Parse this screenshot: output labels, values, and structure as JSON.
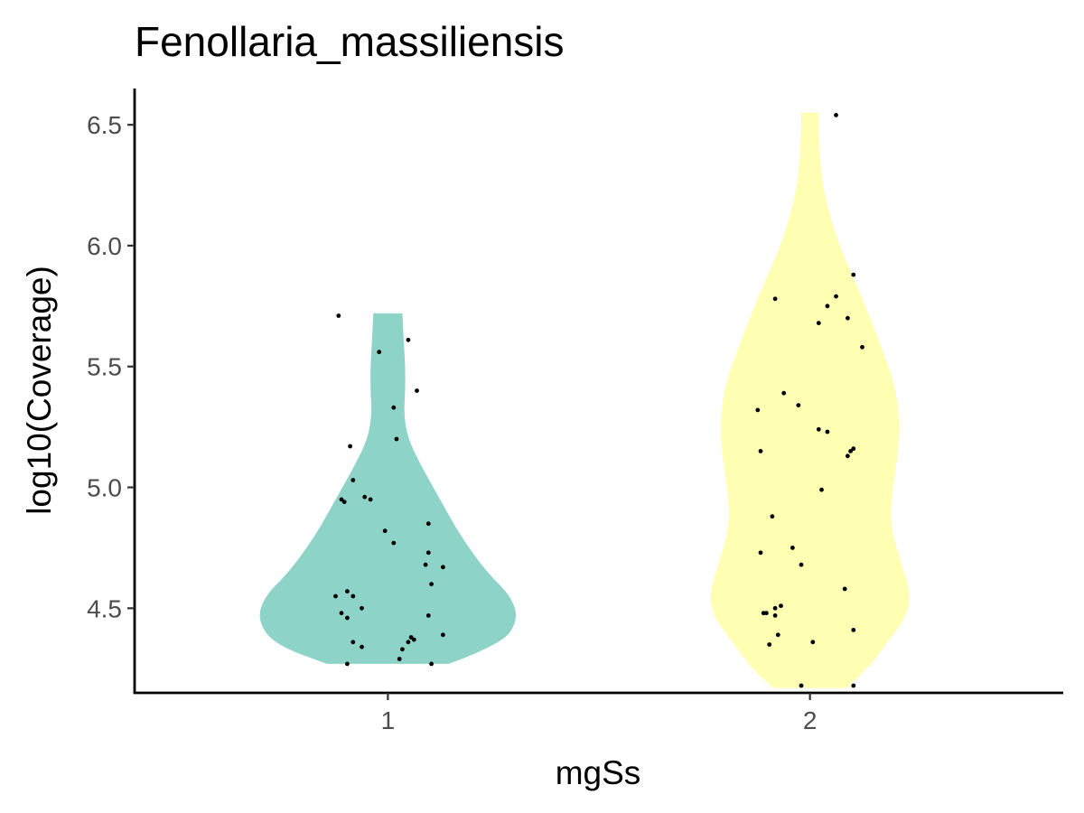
{
  "chart_data": {
    "type": "violin",
    "title": "Fenollaria_massiliensis",
    "xlabel": "mgSs",
    "ylabel": "log10(Coverage)",
    "categories": [
      "1",
      "2"
    ],
    "ylim": [
      4.15,
      6.65
    ],
    "yticks": [
      4.5,
      5.0,
      5.5,
      6.0,
      6.5
    ],
    "ytick_labels": [
      "4.5",
      "5.0",
      "5.5",
      "6.0",
      "6.5"
    ],
    "grid": false,
    "legend": "none",
    "series": [
      {
        "category": "1",
        "color": "#8dd3c7",
        "range": [
          4.27,
          5.72
        ],
        "density_profile": [
          [
            4.27,
            0.42
          ],
          [
            4.35,
            0.78
          ],
          [
            4.45,
            0.9
          ],
          [
            4.55,
            0.85
          ],
          [
            4.65,
            0.68
          ],
          [
            4.8,
            0.5
          ],
          [
            4.95,
            0.36
          ],
          [
            5.1,
            0.22
          ],
          [
            5.2,
            0.14
          ],
          [
            5.3,
            0.11
          ],
          [
            5.4,
            0.12
          ],
          [
            5.5,
            0.12
          ],
          [
            5.6,
            0.11
          ],
          [
            5.72,
            0.1
          ]
        ],
        "points": [
          [
            -0.17,
            5.71
          ],
          [
            -0.03,
            5.56
          ],
          [
            0.02,
            5.33
          ],
          [
            0.03,
            5.2
          ],
          [
            0.07,
            5.61
          ],
          [
            0.1,
            5.4
          ],
          [
            -0.13,
            5.17
          ],
          [
            -0.12,
            5.03
          ],
          [
            -0.16,
            4.95
          ],
          [
            -0.15,
            4.94
          ],
          [
            -0.08,
            4.96
          ],
          [
            -0.06,
            4.95
          ],
          [
            -0.01,
            4.82
          ],
          [
            0.02,
            4.77
          ],
          [
            0.14,
            4.85
          ],
          [
            0.14,
            4.73
          ],
          [
            0.13,
            4.68
          ],
          [
            0.19,
            4.67
          ],
          [
            0.15,
            4.6
          ],
          [
            -0.18,
            4.55
          ],
          [
            -0.14,
            4.57
          ],
          [
            -0.12,
            4.55
          ],
          [
            -0.09,
            4.5
          ],
          [
            -0.16,
            4.48
          ],
          [
            -0.14,
            4.46
          ],
          [
            0.14,
            4.47
          ],
          [
            -0.12,
            4.36
          ],
          [
            -0.09,
            4.34
          ],
          [
            0.08,
            4.38
          ],
          [
            0.09,
            4.37
          ],
          [
            0.07,
            4.36
          ],
          [
            0.05,
            4.33
          ],
          [
            0.04,
            4.29
          ],
          [
            0.19,
            4.39
          ],
          [
            -0.14,
            4.27
          ],
          [
            0.15,
            4.27
          ]
        ]
      },
      {
        "category": "2",
        "color": "#ffffb3",
        "range": [
          4.17,
          6.55
        ],
        "density_profile": [
          [
            4.17,
            0.25
          ],
          [
            4.25,
            0.4
          ],
          [
            4.35,
            0.52
          ],
          [
            4.45,
            0.65
          ],
          [
            4.55,
            0.7
          ],
          [
            4.7,
            0.62
          ],
          [
            4.85,
            0.55
          ],
          [
            5.0,
            0.57
          ],
          [
            5.2,
            0.62
          ],
          [
            5.4,
            0.6
          ],
          [
            5.6,
            0.48
          ],
          [
            5.8,
            0.35
          ],
          [
            6.0,
            0.2
          ],
          [
            6.2,
            0.1
          ],
          [
            6.4,
            0.06
          ],
          [
            6.55,
            0.06
          ]
        ],
        "points": [
          [
            0.09,
            6.54
          ],
          [
            0.15,
            5.88
          ],
          [
            -0.12,
            5.78
          ],
          [
            0.09,
            5.79
          ],
          [
            0.06,
            5.75
          ],
          [
            0.13,
            5.7
          ],
          [
            0.03,
            5.68
          ],
          [
            0.18,
            5.58
          ],
          [
            -0.09,
            5.39
          ],
          [
            -0.04,
            5.34
          ],
          [
            -0.18,
            5.32
          ],
          [
            0.03,
            5.24
          ],
          [
            0.06,
            5.23
          ],
          [
            0.15,
            5.16
          ],
          [
            0.14,
            5.15
          ],
          [
            0.13,
            5.13
          ],
          [
            -0.17,
            5.15
          ],
          [
            0.04,
            4.99
          ],
          [
            -0.13,
            4.88
          ],
          [
            -0.06,
            4.75
          ],
          [
            -0.03,
            4.68
          ],
          [
            -0.17,
            4.73
          ],
          [
            0.12,
            4.58
          ],
          [
            -0.15,
            4.48
          ],
          [
            -0.16,
            4.48
          ],
          [
            -0.12,
            4.5
          ],
          [
            -0.12,
            4.47
          ],
          [
            -0.1,
            4.51
          ],
          [
            -0.11,
            4.39
          ],
          [
            -0.14,
            4.35
          ],
          [
            0.01,
            4.36
          ],
          [
            0.15,
            4.41
          ],
          [
            -0.03,
            4.18
          ],
          [
            0.15,
            4.18
          ]
        ]
      }
    ]
  }
}
